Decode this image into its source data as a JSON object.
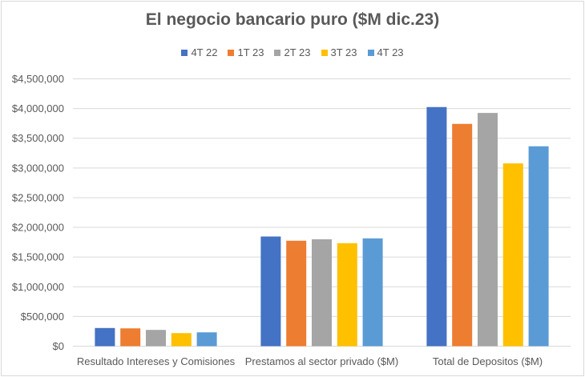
{
  "chart_data": {
    "type": "bar",
    "title": "El negocio bancario puro ($M dic.23)",
    "xlabel": "",
    "ylabel": "",
    "categories": [
      "Resultado Intereses y Comisiones",
      "Prestamos al sector privado ($M)",
      "Total de Depositos ($M)"
    ],
    "series": [
      {
        "name": "4T 22",
        "color": "#4472C4",
        "values": [
          306000,
          1846000,
          4025000
        ]
      },
      {
        "name": "1T 23",
        "color": "#ED7D31",
        "values": [
          300000,
          1775000,
          3742000
        ]
      },
      {
        "name": "2T 23",
        "color": "#A5A5A5",
        "values": [
          274000,
          1800000,
          3926000
        ]
      },
      {
        "name": "3T 23",
        "color": "#FFC000",
        "values": [
          220000,
          1734000,
          3077000
        ]
      },
      {
        "name": "4T 23",
        "color": "#5B9BD5",
        "values": [
          233000,
          1815000,
          3365000
        ]
      }
    ],
    "ylim": [
      0,
      4500000
    ],
    "yticks": [
      0,
      500000,
      1000000,
      1500000,
      2000000,
      2500000,
      3000000,
      3500000,
      4000000,
      4500000
    ],
    "ytick_labels": [
      "$0",
      "$500,000",
      "$1,000,000",
      "$1,500,000",
      "$2,000,000",
      "$2,500,000",
      "$3,000,000",
      "$3,500,000",
      "$4,000,000",
      "$4,500,000"
    ],
    "grid": true,
    "legend_position": "top"
  }
}
